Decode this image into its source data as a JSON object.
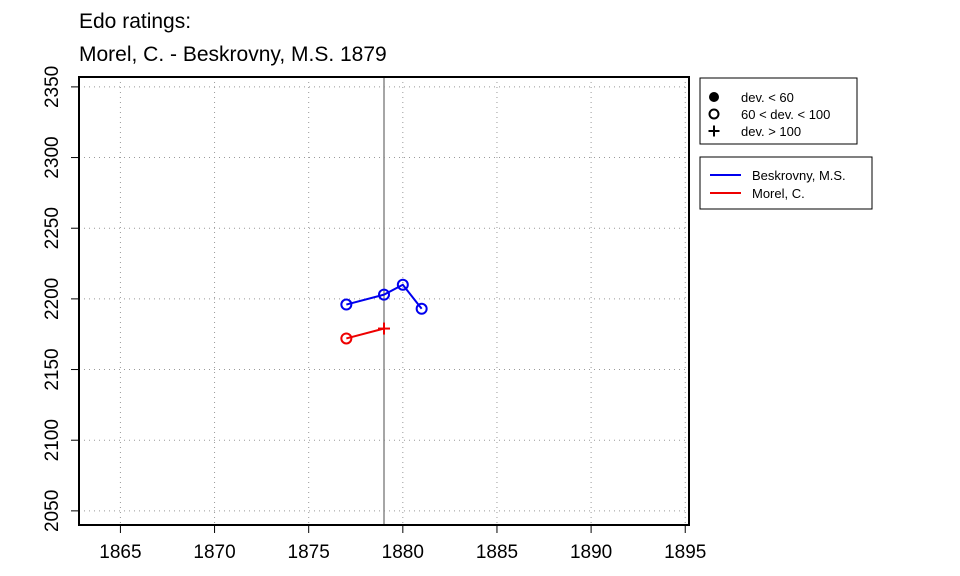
{
  "chart_data": {
    "type": "line",
    "title": "Edo ratings:",
    "subtitle": "Morel, C. - Beskrovny, M.S. 1879",
    "xlabel": "",
    "ylabel": "",
    "xlim": [
      1862.8,
      1895.2
    ],
    "ylim": [
      2040,
      2357
    ],
    "x_ticks": [
      1865,
      1870,
      1875,
      1880,
      1885,
      1890,
      1895
    ],
    "y_ticks": [
      2050,
      2100,
      2150,
      2200,
      2250,
      2300,
      2350
    ],
    "grid": true,
    "reference_line_x": 1879,
    "series": [
      {
        "name": "Beskrovny, M.S.",
        "color": "#0000ee",
        "points": [
          {
            "x": 1877,
            "y": 2196,
            "marker": "open-circle"
          },
          {
            "x": 1879,
            "y": 2203,
            "marker": "open-circle"
          },
          {
            "x": 1880,
            "y": 2210,
            "marker": "open-circle"
          },
          {
            "x": 1881,
            "y": 2193,
            "marker": "open-circle"
          }
        ]
      },
      {
        "name": "Morel, C.",
        "color": "#ee0000",
        "points": [
          {
            "x": 1877,
            "y": 2172,
            "marker": "open-circle"
          },
          {
            "x": 1879,
            "y": 2179,
            "marker": "plus"
          }
        ]
      }
    ],
    "marker_legend": [
      {
        "marker": "filled-circle",
        "label": "dev. < 60"
      },
      {
        "marker": "open-circle",
        "label": "60 < dev. < 100"
      },
      {
        "marker": "plus",
        "label": "dev. > 100"
      }
    ],
    "legend_position": "right"
  }
}
